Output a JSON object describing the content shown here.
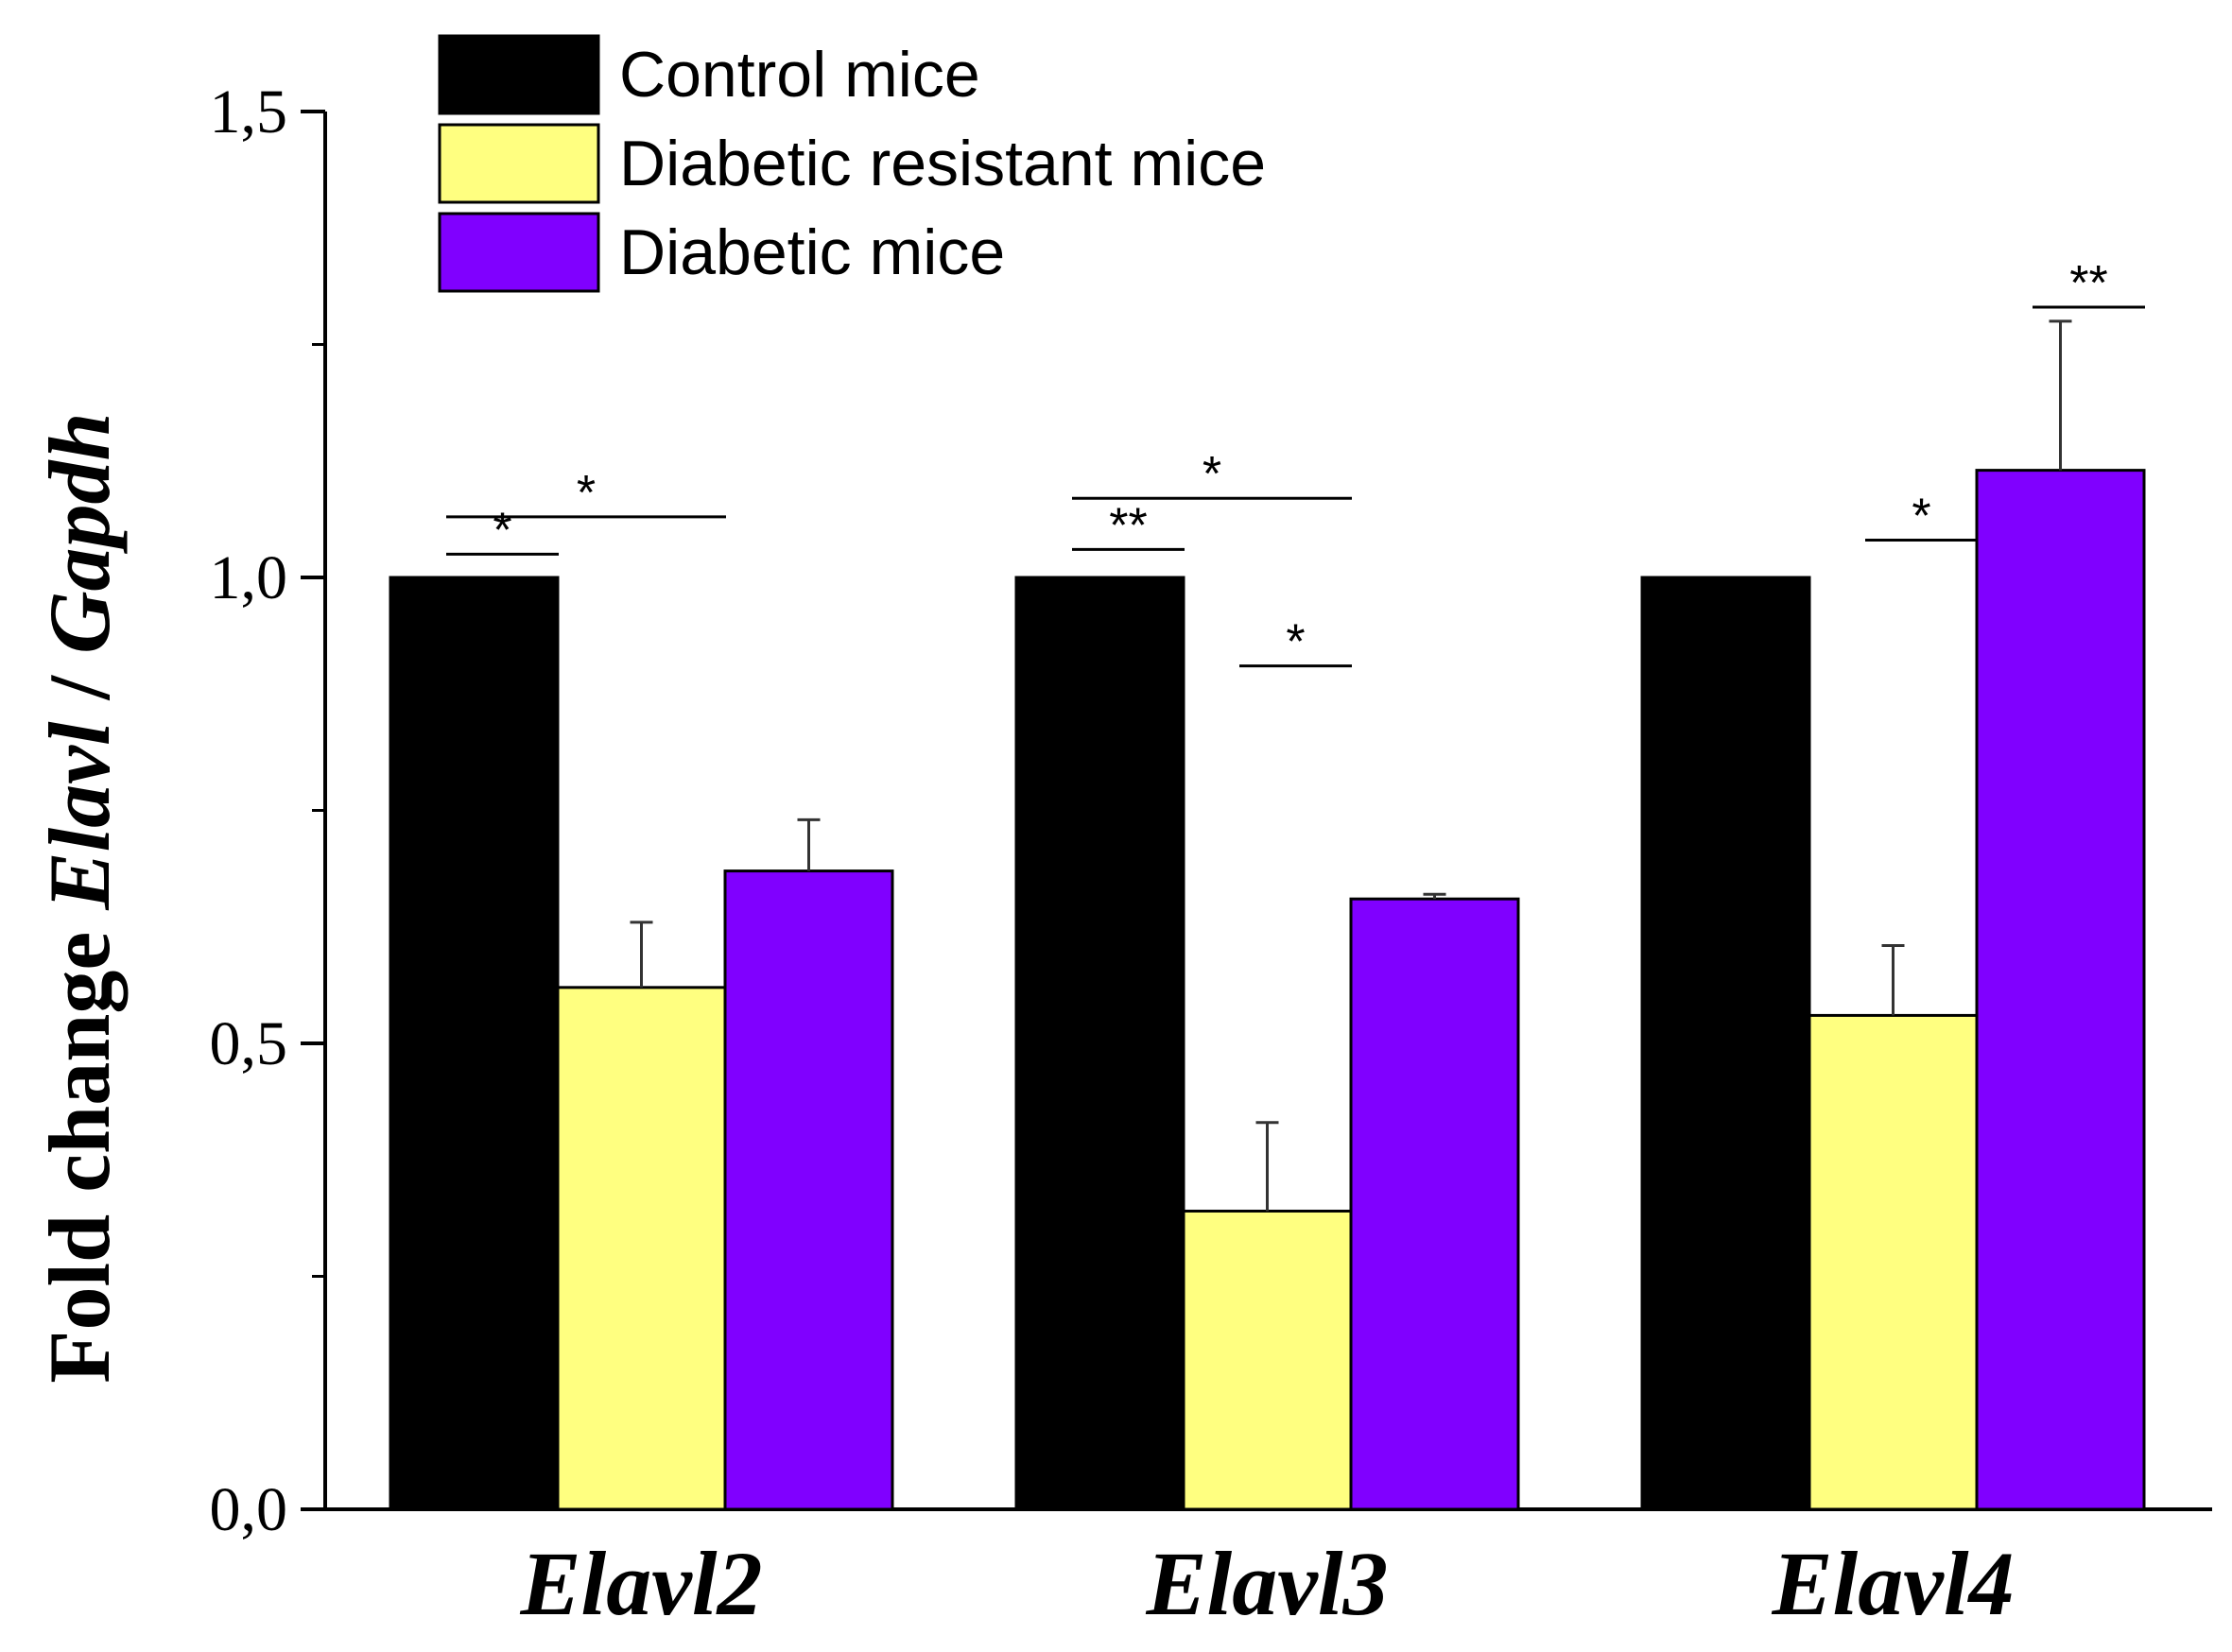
{
  "chart_data": {
    "type": "bar",
    "title": "",
    "xlabel": "",
    "ylabel": {
      "prefix": "Fold change ",
      "gene": "Elavl",
      "separator": " / ",
      "reference": "Gapdh"
    },
    "ylim": [
      0,
      1.5
    ],
    "yticks": [
      {
        "value": 0.0,
        "label": "0,0"
      },
      {
        "value": 0.5,
        "label": "0,5"
      },
      {
        "value": 1.0,
        "label": "1,0"
      },
      {
        "value": 1.5,
        "label": "1,5"
      }
    ],
    "minor_ticks": [
      0.25,
      0.75,
      1.25
    ],
    "categories": [
      "Elavl2",
      "Elavl3",
      "Elavl4"
    ],
    "series": [
      {
        "name": "Control mice",
        "color": "#000000",
        "values": [
          1.0,
          1.0,
          1.0
        ],
        "errors": [
          0,
          0,
          0
        ]
      },
      {
        "name": "Diabetic resistant mice",
        "color": "#FFFF80",
        "values": [
          0.56,
          0.32,
          0.53
        ],
        "errors": [
          0.07,
          0.095,
          0.075
        ]
      },
      {
        "name": "Diabetic mice",
        "color": "#8000FF",
        "values": [
          0.685,
          0.655,
          1.115
        ],
        "errors": [
          0.055,
          0.005,
          0.16
        ]
      }
    ],
    "legend_position": "top-left",
    "significance": [
      {
        "category": 0,
        "from": 0,
        "to": 1,
        "y": 1.025,
        "label": "*"
      },
      {
        "category": 0,
        "from": 0,
        "to": 2,
        "y": 1.065,
        "label": "*"
      },
      {
        "category": 1,
        "from": 0,
        "to": 1,
        "y": 1.03,
        "label": "**"
      },
      {
        "category": 1,
        "from": 0,
        "to": 2,
        "y": 1.085,
        "label": "*"
      },
      {
        "category": 1,
        "from": 1,
        "to": 2,
        "y": 0.905,
        "label": "*"
      },
      {
        "category": 2,
        "from": 1,
        "to": 2,
        "y": 1.04,
        "label": "*"
      },
      {
        "category": 2,
        "from": 2,
        "to": 3,
        "y": 1.29,
        "label": "**"
      }
    ]
  }
}
